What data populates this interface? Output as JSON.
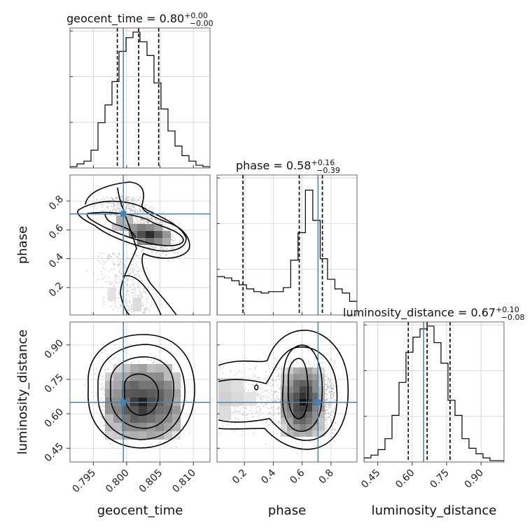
{
  "chart_data": {
    "type": "corner",
    "parameters": [
      "geocent_time",
      "phase",
      "luminosity_distance"
    ],
    "truths": [
      0.7995,
      0.71,
      0.65
    ],
    "titles": [
      {
        "name": "geocent_time",
        "median": "0.80",
        "plus": "+0.00",
        "minus": "−0.00"
      },
      {
        "name": "phase",
        "median": "0.58",
        "plus": "+0.16",
        "minus": "−0.39"
      },
      {
        "name": "luminosity_distance",
        "median": "0.67",
        "plus": "+0.10",
        "minus": "−0.08"
      }
    ],
    "quantiles": [
      [
        0.7986,
        0.8018,
        0.8048
      ],
      [
        0.19,
        0.58,
        0.74
      ],
      [
        0.583,
        0.665,
        0.765
      ]
    ],
    "ranges": [
      [
        0.7915,
        0.8125
      ],
      [
        0.01,
        0.98
      ],
      [
        0.39,
        1.0
      ]
    ],
    "ticks": [
      {
        "values": [
          0.795,
          0.8,
          0.805,
          0.81
        ],
        "labels": [
          "0.795",
          "0.800",
          "0.805",
          "0.810"
        ]
      },
      {
        "values": [
          0.2,
          0.4,
          0.6,
          0.8
        ],
        "labels": [
          "0.2",
          "0.4",
          "0.6",
          "0.8"
        ]
      },
      {
        "values": [
          0.45,
          0.6,
          0.75,
          0.9
        ],
        "labels": [
          "0.45",
          "0.60",
          "0.75",
          "0.90"
        ]
      }
    ],
    "histograms": [
      [
        0.01,
        0.03,
        0.05,
        0.13,
        0.33,
        0.46,
        0.63,
        0.85,
        0.95,
        0.99,
        0.92,
        0.82,
        0.62,
        0.43,
        0.27,
        0.16,
        0.09,
        0.05,
        0.02,
        0.01
      ],
      [
        0.28,
        0.27,
        0.25,
        0.22,
        0.19,
        0.17,
        0.16,
        0.17,
        0.17,
        0.2,
        0.4,
        0.6,
        0.91,
        0.69,
        0.41,
        0.26,
        0.19,
        0.16,
        0.1
      ],
      [
        0.03,
        0.05,
        0.09,
        0.17,
        0.34,
        0.58,
        0.8,
        0.91,
        0.97,
        0.99,
        0.87,
        0.72,
        0.45,
        0.34,
        0.17,
        0.1,
        0.06,
        0.03,
        0.01,
        0.01
      ]
    ],
    "grid": true
  }
}
